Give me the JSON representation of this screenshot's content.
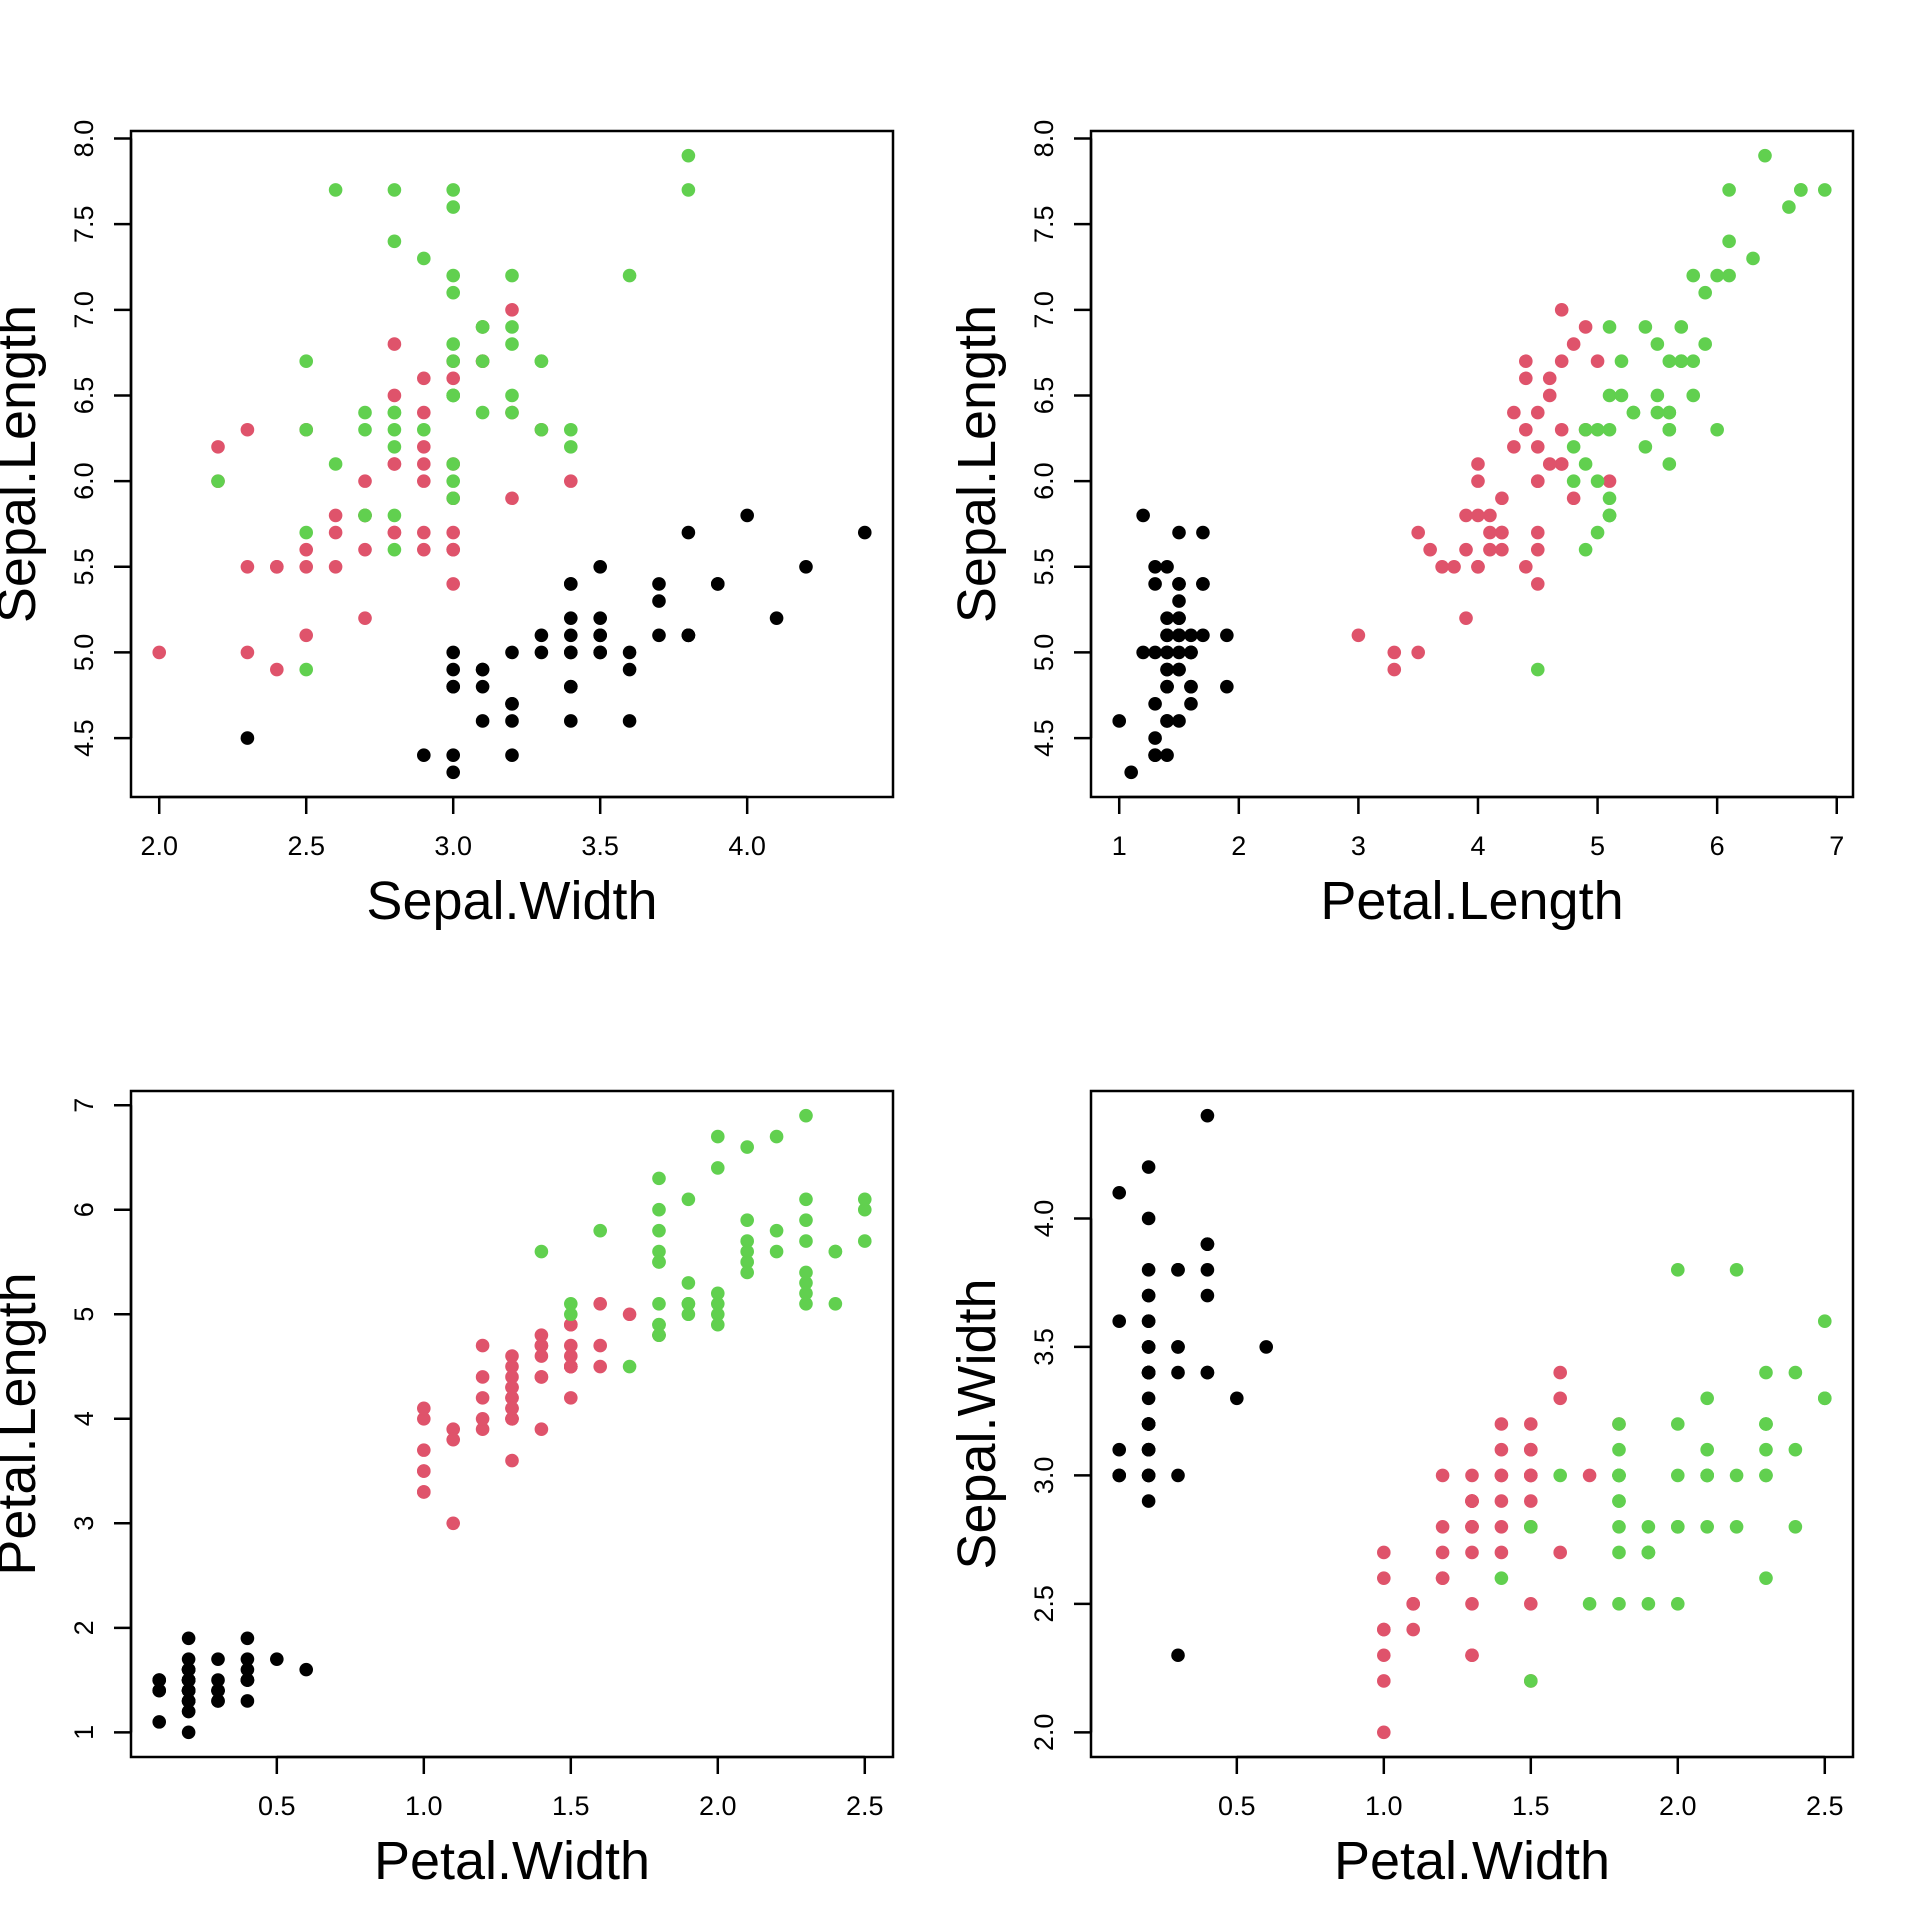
{
  "chart_data": {
    "type": "scatter",
    "grid": false,
    "legend": "none",
    "group_colors": [
      "#000000",
      "#DF536B",
      "#61D04F"
    ],
    "columns": {
      "Sepal.Length": [
        [
          5.1,
          4.9,
          4.7,
          4.6,
          5.0,
          5.4,
          4.6,
          5.0,
          4.4,
          4.9,
          5.4,
          4.8,
          4.8,
          4.3,
          5.8,
          5.7,
          5.4,
          5.1,
          5.7,
          5.1,
          5.4,
          5.1,
          4.6,
          5.1,
          4.8,
          5.0,
          5.0,
          5.2,
          5.2,
          4.7,
          4.8,
          5.4,
          5.2,
          5.5,
          4.9,
          5.0,
          5.5,
          4.9,
          4.4,
          5.1,
          5.0,
          4.5,
          4.4,
          5.0,
          5.1,
          4.8,
          5.1,
          4.6,
          5.3,
          5.0
        ],
        [
          7.0,
          6.4,
          6.9,
          5.5,
          6.5,
          5.7,
          6.3,
          4.9,
          6.6,
          5.2,
          5.0,
          5.9,
          6.0,
          6.1,
          5.6,
          6.7,
          5.6,
          5.8,
          6.2,
          5.6,
          5.9,
          6.1,
          6.3,
          6.1,
          6.4,
          6.6,
          6.8,
          6.7,
          6.0,
          5.7,
          5.5,
          5.5,
          5.8,
          6.0,
          5.4,
          6.0,
          6.7,
          6.3,
          5.6,
          5.5,
          5.5,
          6.1,
          5.8,
          5.0,
          5.6,
          5.7,
          5.7,
          6.2,
          5.1,
          5.7
        ],
        [
          6.3,
          5.8,
          7.1,
          6.3,
          6.5,
          7.6,
          4.9,
          7.3,
          6.7,
          7.2,
          6.5,
          6.4,
          6.8,
          5.7,
          5.8,
          6.4,
          6.5,
          7.7,
          7.7,
          6.0,
          6.9,
          5.6,
          7.7,
          6.3,
          6.7,
          7.2,
          6.2,
          6.1,
          6.4,
          7.2,
          7.4,
          7.9,
          6.4,
          6.3,
          6.1,
          7.7,
          6.3,
          6.4,
          6.0,
          6.9,
          6.7,
          6.9,
          5.8,
          6.8,
          6.7,
          6.7,
          6.3,
          6.5,
          6.2,
          5.9
        ]
      ],
      "Sepal.Width": [
        [
          3.5,
          3.0,
          3.2,
          3.1,
          3.6,
          3.9,
          3.4,
          3.4,
          2.9,
          3.1,
          3.7,
          3.4,
          3.0,
          3.0,
          4.0,
          4.4,
          3.9,
          3.5,
          3.8,
          3.8,
          3.4,
          3.7,
          3.6,
          3.3,
          3.4,
          3.0,
          3.4,
          3.5,
          3.4,
          3.2,
          3.1,
          3.4,
          4.1,
          4.2,
          3.1,
          3.2,
          3.5,
          3.6,
          3.0,
          3.4,
          3.5,
          2.3,
          3.2,
          3.5,
          3.8,
          3.0,
          3.8,
          3.2,
          3.7,
          3.3
        ],
        [
          3.2,
          3.2,
          3.1,
          2.3,
          2.8,
          2.8,
          3.3,
          2.4,
          2.9,
          2.7,
          2.0,
          3.0,
          2.2,
          2.9,
          2.9,
          3.1,
          3.0,
          2.7,
          2.2,
          2.5,
          3.2,
          2.8,
          2.5,
          2.8,
          2.9,
          3.0,
          2.8,
          3.0,
          2.9,
          2.6,
          2.4,
          2.4,
          2.7,
          2.7,
          3.0,
          3.4,
          3.1,
          2.3,
          3.0,
          2.5,
          2.6,
          3.0,
          2.6,
          2.3,
          2.7,
          3.0,
          2.9,
          2.9,
          2.5,
          2.8
        ],
        [
          3.3,
          2.7,
          3.0,
          2.9,
          3.0,
          3.0,
          2.5,
          2.9,
          2.5,
          3.6,
          3.2,
          2.7,
          3.0,
          2.5,
          2.8,
          3.2,
          3.0,
          3.8,
          2.6,
          2.2,
          3.2,
          2.8,
          2.8,
          2.7,
          3.3,
          3.2,
          2.8,
          3.0,
          2.8,
          3.0,
          2.8,
          3.8,
          2.8,
          2.8,
          2.6,
          3.0,
          3.4,
          3.1,
          3.0,
          3.1,
          3.1,
          3.1,
          2.7,
          3.2,
          3.3,
          3.0,
          2.5,
          3.0,
          3.4,
          3.0
        ]
      ],
      "Petal.Length": [
        [
          1.4,
          1.4,
          1.3,
          1.5,
          1.4,
          1.7,
          1.4,
          1.5,
          1.4,
          1.5,
          1.5,
          1.6,
          1.4,
          1.1,
          1.2,
          1.5,
          1.3,
          1.4,
          1.7,
          1.5,
          1.7,
          1.5,
          1.0,
          1.7,
          1.9,
          1.6,
          1.6,
          1.5,
          1.4,
          1.6,
          1.6,
          1.5,
          1.5,
          1.4,
          1.5,
          1.2,
          1.3,
          1.4,
          1.3,
          1.5,
          1.3,
          1.3,
          1.3,
          1.6,
          1.9,
          1.4,
          1.6,
          1.4,
          1.5,
          1.4
        ],
        [
          4.7,
          4.5,
          4.9,
          4.0,
          4.6,
          4.5,
          4.7,
          3.3,
          4.6,
          3.9,
          3.5,
          4.2,
          4.0,
          4.7,
          3.6,
          4.4,
          4.5,
          4.1,
          4.5,
          3.9,
          4.8,
          4.0,
          4.9,
          4.7,
          4.3,
          4.4,
          4.8,
          5.0,
          4.5,
          3.5,
          3.8,
          3.7,
          3.9,
          5.1,
          4.5,
          4.5,
          4.7,
          4.4,
          4.1,
          4.0,
          4.4,
          4.6,
          4.0,
          3.3,
          4.2,
          4.2,
          4.2,
          4.3,
          3.0,
          4.1
        ],
        [
          6.0,
          5.1,
          5.9,
          5.6,
          5.8,
          6.6,
          4.5,
          6.3,
          5.8,
          6.1,
          5.1,
          5.3,
          5.5,
          5.0,
          5.1,
          5.3,
          5.5,
          6.7,
          6.9,
          5.0,
          5.7,
          4.9,
          6.7,
          4.9,
          5.7,
          6.0,
          4.8,
          4.9,
          5.6,
          5.8,
          6.1,
          6.4,
          5.6,
          5.1,
          5.6,
          6.1,
          5.6,
          5.5,
          4.8,
          5.4,
          5.6,
          5.1,
          5.1,
          5.9,
          5.7,
          5.2,
          5.0,
          5.2,
          5.4,
          5.1
        ]
      ],
      "Petal.Width": [
        [
          0.2,
          0.2,
          0.2,
          0.2,
          0.2,
          0.4,
          0.3,
          0.2,
          0.2,
          0.1,
          0.2,
          0.2,
          0.1,
          0.1,
          0.2,
          0.4,
          0.4,
          0.3,
          0.3,
          0.3,
          0.2,
          0.4,
          0.2,
          0.5,
          0.2,
          0.2,
          0.4,
          0.2,
          0.2,
          0.2,
          0.2,
          0.4,
          0.1,
          0.2,
          0.2,
          0.2,
          0.2,
          0.1,
          0.2,
          0.2,
          0.3,
          0.3,
          0.2,
          0.6,
          0.4,
          0.3,
          0.2,
          0.2,
          0.2,
          0.2
        ],
        [
          1.4,
          1.5,
          1.5,
          1.3,
          1.5,
          1.3,
          1.6,
          1.0,
          1.3,
          1.4,
          1.0,
          1.5,
          1.0,
          1.4,
          1.3,
          1.4,
          1.5,
          1.0,
          1.5,
          1.1,
          1.8,
          1.3,
          1.5,
          1.2,
          1.3,
          1.4,
          1.4,
          1.7,
          1.5,
          1.0,
          1.1,
          1.0,
          1.2,
          1.6,
          1.5,
          1.6,
          1.5,
          1.3,
          1.3,
          1.3,
          1.2,
          1.4,
          1.2,
          1.0,
          1.3,
          1.2,
          1.3,
          1.3,
          1.1,
          1.3
        ],
        [
          2.5,
          1.9,
          2.1,
          1.8,
          2.2,
          2.1,
          1.7,
          1.8,
          1.8,
          2.5,
          2.0,
          1.9,
          2.1,
          2.0,
          2.4,
          2.3,
          1.8,
          2.2,
          2.3,
          1.5,
          2.3,
          2.0,
          2.0,
          1.8,
          2.1,
          1.8,
          1.8,
          1.8,
          2.1,
          1.6,
          1.9,
          2.0,
          2.2,
          1.5,
          1.4,
          2.3,
          2.4,
          1.8,
          1.8,
          2.1,
          2.4,
          2.3,
          1.9,
          2.3,
          2.5,
          2.3,
          1.9,
          2.0,
          2.3,
          1.8
        ]
      ]
    },
    "panels": [
      {
        "x": "Sepal.Width",
        "y": "Sepal.Length",
        "xlabel": "Sepal.Width",
        "ylabel": "Sepal.Length",
        "xlim": [
          1.904,
          4.496
        ],
        "ylim": [
          4.156,
          8.044
        ],
        "xticks": [
          "2.0",
          "2.5",
          "3.0",
          "3.5",
          "4.0"
        ],
        "yticks": [
          "4.5",
          "5.0",
          "5.5",
          "6.0",
          "6.5",
          "7.0",
          "7.5",
          "8.0"
        ]
      },
      {
        "x": "Petal.Length",
        "y": "Sepal.Length",
        "xlabel": "Petal.Length",
        "ylabel": "Sepal.Length",
        "xlim": [
          0.764,
          7.136
        ],
        "ylim": [
          4.156,
          8.044
        ],
        "xticks": [
          "1",
          "2",
          "3",
          "4",
          "5",
          "6",
          "7"
        ],
        "yticks": [
          "4.5",
          "5.0",
          "5.5",
          "6.0",
          "6.5",
          "7.0",
          "7.5",
          "8.0"
        ]
      },
      {
        "x": "Petal.Width",
        "y": "Petal.Length",
        "xlabel": "Petal.Width",
        "ylabel": "Petal.Length",
        "xlim": [
          0.004,
          2.596
        ],
        "ylim": [
          0.764,
          7.136
        ],
        "xticks": [
          "0.5",
          "1.0",
          "1.5",
          "2.0",
          "2.5"
        ],
        "yticks": [
          "1",
          "2",
          "3",
          "4",
          "5",
          "6",
          "7"
        ]
      },
      {
        "x": "Petal.Width",
        "y": "Sepal.Width",
        "xlabel": "Petal.Width",
        "ylabel": "Sepal.Width",
        "xlim": [
          0.004,
          2.596
        ],
        "ylim": [
          1.904,
          4.496
        ],
        "xticks": [
          "0.5",
          "1.0",
          "1.5",
          "2.0",
          "2.5"
        ],
        "yticks": [
          "2.0",
          "2.5",
          "3.0",
          "3.5",
          "4.0"
        ]
      }
    ]
  }
}
